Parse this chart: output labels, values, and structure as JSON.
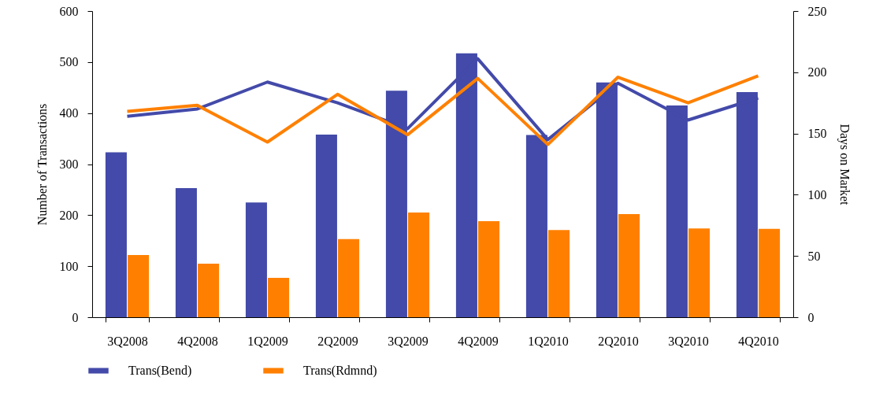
{
  "chart_data": {
    "type": "bar",
    "ylabel": "Number of Transactions",
    "y2label": "Days on Market",
    "categories": [
      "3Q2008",
      "4Q2008",
      "1Q2009",
      "2Q2009",
      "3Q2009",
      "4Q2009",
      "1Q2010",
      "2Q2010",
      "3Q2010",
      "4Q2010"
    ],
    "series": [
      {
        "name": "Trans(Bend)",
        "color": "#434aa9",
        "values": [
          323,
          253,
          225,
          358,
          444,
          517,
          357,
          460,
          415,
          441
        ]
      },
      {
        "name": "Trans(Rdmnd)",
        "color": "#ff8000",
        "values": [
          122,
          105,
          77,
          153,
          205,
          188,
          171,
          202,
          174,
          173
        ]
      },
      {
        "type": "line",
        "axis": "y2",
        "color": "#434aa9",
        "values": [
          164,
          170,
          192,
          175,
          154,
          211,
          145,
          191,
          161,
          179
        ]
      },
      {
        "type": "line",
        "axis": "y2",
        "color": "#ff8000",
        "values": [
          168,
          173,
          143,
          182,
          149,
          195,
          141,
          196,
          175,
          197
        ]
      }
    ],
    "ylim": [
      0,
      600
    ],
    "yticks": [
      0,
      100,
      200,
      300,
      400,
      500,
      600
    ],
    "y2lim": [
      0,
      250
    ],
    "y2ticks": [
      0,
      50,
      100,
      150,
      200,
      250
    ],
    "grid": false,
    "legend": "bottom"
  }
}
